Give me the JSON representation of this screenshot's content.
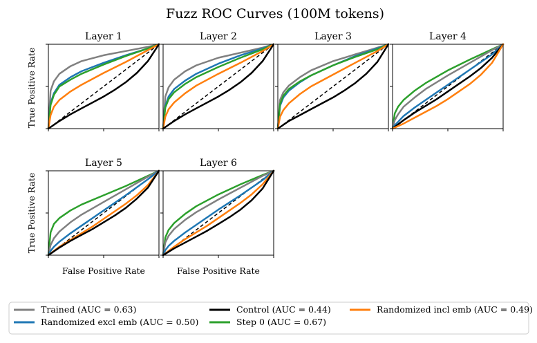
{
  "chart_data": {
    "type": "line",
    "title": "Fuzz ROC Curves (100M tokens)",
    "xlabel": "False Positive Rate",
    "ylabel": "True Positive Rate",
    "xlim": [
      0,
      1
    ],
    "ylim": [
      0,
      1
    ],
    "diagonal": "dashed chance line",
    "legend": {
      "placement": "bottom",
      "entries": [
        {
          "key": "trained",
          "label": "Trained (AUC = 0.63)",
          "color": "#808080"
        },
        {
          "key": "control",
          "label": "Control (AUC = 0.44)",
          "color": "#000000"
        },
        {
          "key": "rand_incl",
          "label": "Randomized incl emb (AUC = 0.49)",
          "color": "#ff7f0e"
        },
        {
          "key": "rand_excl",
          "label": "Randomized excl emb (AUC = 0.50)",
          "color": "#1f77b4"
        },
        {
          "key": "step0",
          "label": "Step 0 (AUC = 0.67)",
          "color": "#2ca02c"
        }
      ]
    },
    "panels": [
      {
        "title": "Layer 1",
        "series": [
          {
            "key": "trained",
            "x": [
              0,
              0.02,
              0.05,
              0.1,
              0.2,
              0.3,
              0.5,
              0.7,
              0.9,
              1
            ],
            "y": [
              0,
              0.45,
              0.56,
              0.65,
              0.74,
              0.8,
              0.87,
              0.92,
              0.97,
              1
            ]
          },
          {
            "key": "rand_excl",
            "x": [
              0,
              0.02,
              0.05,
              0.1,
              0.2,
              0.3,
              0.5,
              0.7,
              0.9,
              1
            ],
            "y": [
              0,
              0.3,
              0.42,
              0.52,
              0.61,
              0.68,
              0.78,
              0.87,
              0.95,
              1
            ]
          },
          {
            "key": "step0",
            "x": [
              0,
              0.02,
              0.05,
              0.1,
              0.2,
              0.3,
              0.5,
              0.7,
              0.9,
              1
            ],
            "y": [
              0,
              0.28,
              0.4,
              0.5,
              0.58,
              0.65,
              0.76,
              0.86,
              0.95,
              1
            ]
          },
          {
            "key": "rand_incl",
            "x": [
              0,
              0.02,
              0.05,
              0.1,
              0.2,
              0.3,
              0.5,
              0.7,
              0.9,
              1
            ],
            "y": [
              0,
              0.16,
              0.26,
              0.34,
              0.44,
              0.52,
              0.66,
              0.79,
              0.93,
              1
            ]
          },
          {
            "key": "control",
            "x": [
              0,
              0.1,
              0.2,
              0.3,
              0.4,
              0.5,
              0.6,
              0.7,
              0.8,
              0.9,
              1
            ],
            "y": [
              0,
              0.09,
              0.17,
              0.24,
              0.31,
              0.38,
              0.46,
              0.55,
              0.66,
              0.8,
              1
            ]
          }
        ]
      },
      {
        "title": "Layer 2",
        "series": [
          {
            "key": "trained",
            "x": [
              0,
              0.02,
              0.05,
              0.1,
              0.2,
              0.3,
              0.5,
              0.7,
              0.9,
              1
            ],
            "y": [
              0,
              0.38,
              0.49,
              0.58,
              0.68,
              0.75,
              0.84,
              0.9,
              0.96,
              1
            ]
          },
          {
            "key": "rand_excl",
            "x": [
              0,
              0.02,
              0.05,
              0.1,
              0.2,
              0.3,
              0.5,
              0.7,
              0.9,
              1
            ],
            "y": [
              0,
              0.27,
              0.38,
              0.47,
              0.57,
              0.65,
              0.77,
              0.87,
              0.95,
              1
            ]
          },
          {
            "key": "step0",
            "x": [
              0,
              0.02,
              0.05,
              0.1,
              0.2,
              0.3,
              0.5,
              0.7,
              0.9,
              1
            ],
            "y": [
              0,
              0.25,
              0.35,
              0.43,
              0.53,
              0.61,
              0.73,
              0.84,
              0.94,
              1
            ]
          },
          {
            "key": "rand_incl",
            "x": [
              0,
              0.02,
              0.05,
              0.1,
              0.2,
              0.3,
              0.5,
              0.7,
              0.9,
              1
            ],
            "y": [
              0,
              0.14,
              0.23,
              0.31,
              0.42,
              0.51,
              0.65,
              0.78,
              0.92,
              1
            ]
          },
          {
            "key": "control",
            "x": [
              0,
              0.1,
              0.2,
              0.3,
              0.4,
              0.5,
              0.6,
              0.7,
              0.8,
              0.9,
              1
            ],
            "y": [
              0,
              0.09,
              0.17,
              0.24,
              0.31,
              0.38,
              0.46,
              0.55,
              0.66,
              0.8,
              1
            ]
          }
        ]
      },
      {
        "title": "Layer 3",
        "series": [
          {
            "key": "trained",
            "x": [
              0,
              0.02,
              0.05,
              0.1,
              0.2,
              0.3,
              0.5,
              0.7,
              0.9,
              1
            ],
            "y": [
              0,
              0.34,
              0.43,
              0.51,
              0.61,
              0.69,
              0.8,
              0.88,
              0.96,
              1
            ]
          },
          {
            "key": "rand_excl",
            "x": [
              0,
              0.02,
              0.05,
              0.1,
              0.2,
              0.3,
              0.5,
              0.7,
              0.9,
              1
            ],
            "y": [
              0,
              0.27,
              0.37,
              0.45,
              0.55,
              0.63,
              0.75,
              0.86,
              0.95,
              1
            ]
          },
          {
            "key": "step0",
            "x": [
              0,
              0.02,
              0.05,
              0.1,
              0.2,
              0.3,
              0.5,
              0.7,
              0.9,
              1
            ],
            "y": [
              0,
              0.29,
              0.39,
              0.47,
              0.56,
              0.63,
              0.75,
              0.85,
              0.94,
              1
            ]
          },
          {
            "key": "rand_incl",
            "x": [
              0,
              0.02,
              0.05,
              0.1,
              0.2,
              0.3,
              0.5,
              0.7,
              0.9,
              1
            ],
            "y": [
              0,
              0.14,
              0.22,
              0.3,
              0.41,
              0.5,
              0.64,
              0.78,
              0.92,
              1
            ]
          },
          {
            "key": "control",
            "x": [
              0,
              0.1,
              0.2,
              0.3,
              0.4,
              0.5,
              0.6,
              0.7,
              0.8,
              0.9,
              1
            ],
            "y": [
              0,
              0.09,
              0.16,
              0.23,
              0.3,
              0.37,
              0.45,
              0.54,
              0.65,
              0.79,
              1
            ]
          }
        ]
      },
      {
        "title": "Layer 4",
        "series": [
          {
            "key": "step0",
            "x": [
              0,
              0.02,
              0.05,
              0.1,
              0.2,
              0.3,
              0.5,
              0.7,
              0.9,
              1
            ],
            "y": [
              0,
              0.18,
              0.26,
              0.34,
              0.45,
              0.54,
              0.69,
              0.82,
              0.94,
              1
            ]
          },
          {
            "key": "trained",
            "x": [
              0,
              0.02,
              0.05,
              0.1,
              0.2,
              0.3,
              0.5,
              0.7,
              0.9,
              1
            ],
            "y": [
              0,
              0.1,
              0.17,
              0.26,
              0.37,
              0.47,
              0.63,
              0.78,
              0.93,
              1
            ]
          },
          {
            "key": "rand_excl",
            "x": [
              0,
              0.02,
              0.05,
              0.1,
              0.2,
              0.3,
              0.5,
              0.7,
              0.9,
              1
            ],
            "y": [
              0,
              0.04,
              0.08,
              0.15,
              0.25,
              0.34,
              0.52,
              0.7,
              0.88,
              1
            ]
          },
          {
            "key": "control",
            "x": [
              0,
              0.1,
              0.2,
              0.3,
              0.4,
              0.5,
              0.6,
              0.7,
              0.8,
              0.9,
              1
            ],
            "y": [
              0,
              0.1,
              0.19,
              0.27,
              0.35,
              0.44,
              0.53,
              0.62,
              0.72,
              0.84,
              1
            ]
          },
          {
            "key": "rand_incl",
            "x": [
              0,
              0.1,
              0.2,
              0.3,
              0.4,
              0.5,
              0.6,
              0.7,
              0.8,
              0.9,
              1
            ],
            "y": [
              0,
              0.06,
              0.13,
              0.2,
              0.27,
              0.35,
              0.44,
              0.53,
              0.64,
              0.78,
              1
            ]
          }
        ]
      },
      {
        "title": "Layer 5",
        "series": [
          {
            "key": "step0",
            "x": [
              0,
              0.02,
              0.05,
              0.1,
              0.2,
              0.3,
              0.5,
              0.7,
              0.9,
              1
            ],
            "y": [
              0,
              0.27,
              0.37,
              0.44,
              0.53,
              0.6,
              0.71,
              0.82,
              0.94,
              1
            ]
          },
          {
            "key": "trained",
            "x": [
              0,
              0.02,
              0.05,
              0.1,
              0.2,
              0.3,
              0.5,
              0.7,
              0.9,
              1
            ],
            "y": [
              0,
              0.12,
              0.2,
              0.28,
              0.39,
              0.48,
              0.63,
              0.78,
              0.93,
              1
            ]
          },
          {
            "key": "rand_excl",
            "x": [
              0,
              0.02,
              0.05,
              0.1,
              0.2,
              0.3,
              0.5,
              0.7,
              0.9,
              1
            ],
            "y": [
              0,
              0.05,
              0.1,
              0.16,
              0.26,
              0.35,
              0.53,
              0.71,
              0.9,
              1
            ]
          },
          {
            "key": "rand_incl",
            "x": [
              0,
              0.1,
              0.2,
              0.3,
              0.4,
              0.5,
              0.6,
              0.7,
              0.8,
              0.9,
              1
            ],
            "y": [
              0,
              0.1,
              0.18,
              0.26,
              0.34,
              0.43,
              0.52,
              0.61,
              0.71,
              0.83,
              1
            ]
          },
          {
            "key": "control",
            "x": [
              0,
              0.1,
              0.2,
              0.3,
              0.4,
              0.5,
              0.6,
              0.7,
              0.8,
              0.9,
              1
            ],
            "y": [
              0,
              0.09,
              0.17,
              0.24,
              0.31,
              0.39,
              0.47,
              0.56,
              0.67,
              0.8,
              1
            ]
          }
        ]
      },
      {
        "title": "Layer 6",
        "series": [
          {
            "key": "step0",
            "x": [
              0,
              0.02,
              0.05,
              0.1,
              0.2,
              0.3,
              0.5,
              0.7,
              0.9,
              1
            ],
            "y": [
              0,
              0.21,
              0.3,
              0.38,
              0.49,
              0.58,
              0.72,
              0.84,
              0.95,
              1
            ]
          },
          {
            "key": "trained",
            "x": [
              0,
              0.02,
              0.05,
              0.1,
              0.2,
              0.3,
              0.5,
              0.7,
              0.9,
              1
            ],
            "y": [
              0,
              0.15,
              0.23,
              0.31,
              0.42,
              0.51,
              0.66,
              0.8,
              0.94,
              1
            ]
          },
          {
            "key": "rand_excl",
            "x": [
              0,
              0.02,
              0.05,
              0.1,
              0.2,
              0.3,
              0.5,
              0.7,
              0.9,
              1
            ],
            "y": [
              0,
              0.06,
              0.11,
              0.17,
              0.27,
              0.36,
              0.54,
              0.71,
              0.89,
              1
            ]
          },
          {
            "key": "rand_incl",
            "x": [
              0,
              0.1,
              0.2,
              0.3,
              0.4,
              0.5,
              0.6,
              0.7,
              0.8,
              0.9,
              1
            ],
            "y": [
              0,
              0.1,
              0.19,
              0.27,
              0.35,
              0.44,
              0.53,
              0.62,
              0.72,
              0.84,
              1
            ]
          },
          {
            "key": "control",
            "x": [
              0,
              0.1,
              0.2,
              0.3,
              0.4,
              0.5,
              0.6,
              0.7,
              0.8,
              0.9,
              1
            ],
            "y": [
              0,
              0.08,
              0.15,
              0.22,
              0.29,
              0.37,
              0.45,
              0.54,
              0.65,
              0.79,
              1
            ]
          }
        ]
      }
    ]
  }
}
